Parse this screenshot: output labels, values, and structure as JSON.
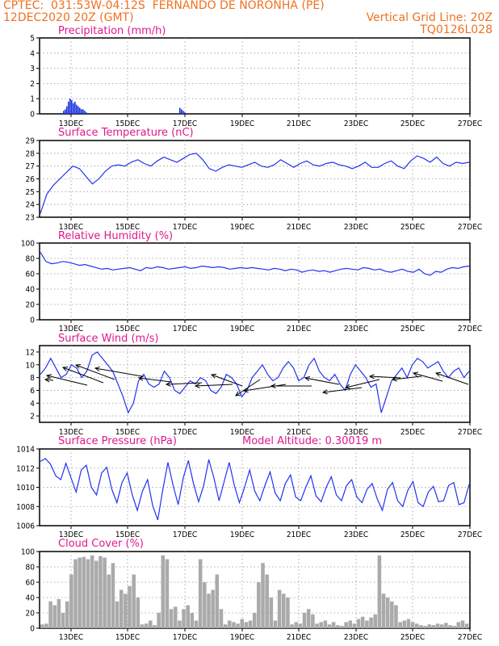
{
  "header": {
    "line1_left": "CPTEC:  031:53W-04:12S  FERNANDO DE NORONHA (PE)",
    "line2_left": "12DEC2020 20Z (GMT)",
    "line2_right": "Vertical Grid Line: 20Z",
    "line3_right": "TQ0126L028",
    "color": "#f07020"
  },
  "colors": {
    "line": "#2233ee",
    "bar_precip": "#1a2fe0",
    "cloud": "#aaaaaa",
    "title": "#e0188c",
    "grid": "#999999"
  },
  "chart_data": [
    {
      "type": "bar",
      "title": "Precipitation (mm/h)",
      "x_ticks": [
        "13DEC",
        "15DEC",
        "17DEC",
        "19DEC",
        "21DEC",
        "23DEC",
        "25DEC",
        "27DEC"
      ],
      "ylim": [
        0,
        5
      ],
      "y_ticks": [
        "0",
        "1",
        "2",
        "3",
        "4",
        "5"
      ],
      "series": [
        {
          "values": [
            0.2,
            0.3,
            0.5,
            0.8,
            1.0,
            0.9,
            0.7,
            0.8,
            0.6,
            0.5,
            0.4,
            0.3,
            0.3,
            0.2,
            0.1,
            0.0,
            0.0,
            0.0,
            0.4,
            0.3,
            0.2,
            0.1
          ]
        }
      ]
    },
    {
      "type": "line",
      "title": "Surface Temperature (nC)",
      "x_ticks": [
        "13DEC",
        "15DEC",
        "17DEC",
        "19DEC",
        "21DEC",
        "23DEC",
        "25DEC",
        "27DEC"
      ],
      "ylim": [
        23,
        29
      ],
      "y_ticks": [
        "23",
        "24",
        "25",
        "26",
        "27",
        "28",
        "29"
      ],
      "series": [
        {
          "values": [
            23.3,
            24.8,
            25.5,
            26.0,
            26.5,
            27.0,
            26.8,
            26.2,
            25.6,
            26.0,
            26.6,
            27.0,
            27.1,
            27.0,
            27.3,
            27.5,
            27.2,
            27.0,
            27.4,
            27.7,
            27.5,
            27.3,
            27.6,
            27.9,
            28.0,
            27.5,
            26.8,
            26.6,
            26.9,
            27.1,
            27.0,
            26.9,
            27.1,
            27.3,
            27.0,
            26.9,
            27.1,
            27.5,
            27.2,
            26.9,
            27.2,
            27.4,
            27.1,
            27.0,
            27.2,
            27.3,
            27.1,
            27.0,
            26.8,
            27.0,
            27.3,
            26.9,
            26.9,
            27.2,
            27.4,
            27.0,
            26.8,
            27.4,
            27.8,
            27.6,
            27.3,
            27.7,
            27.2,
            27.0,
            27.3,
            27.2,
            27.3
          ]
        }
      ]
    },
    {
      "type": "line",
      "title": "Relative Humidity (%)",
      "x_ticks": [
        "13DEC",
        "15DEC",
        "17DEC",
        "19DEC",
        "21DEC",
        "23DEC",
        "25DEC",
        "27DEC"
      ],
      "ylim": [
        0,
        100
      ],
      "y_ticks": [
        "0",
        "20",
        "40",
        "60",
        "80",
        "100"
      ],
      "series": [
        {
          "values": [
            88,
            76,
            73,
            74,
            76,
            75,
            73,
            71,
            72,
            70,
            68,
            66,
            67,
            65,
            66,
            67,
            68,
            66,
            64,
            68,
            67,
            69,
            68,
            66,
            67,
            68,
            69,
            67,
            68,
            70,
            69,
            68,
            69,
            68,
            66,
            67,
            68,
            67,
            68,
            67,
            66,
            65,
            67,
            66,
            64,
            66,
            65,
            62,
            64,
            65,
            63,
            64,
            62,
            64,
            66,
            67,
            66,
            65,
            68,
            67,
            65,
            66,
            63,
            62,
            64,
            66,
            63,
            62,
            66,
            60,
            58,
            63,
            62,
            66,
            68,
            67,
            69,
            70
          ]
        }
      ]
    },
    {
      "type": "line",
      "title": "Surface Wind (m/s)",
      "x_ticks": [
        "13DEC",
        "15DEC",
        "17DEC",
        "19DEC",
        "21DEC",
        "23DEC",
        "25DEC",
        "27DEC"
      ],
      "ylim": [
        1,
        13
      ],
      "y_ticks": [
        "2",
        "4",
        "6",
        "8",
        "10",
        "12"
      ],
      "series": [
        {
          "values": [
            8.5,
            9.5,
            11.0,
            9.5,
            8.0,
            8.5,
            10.0,
            9.5,
            8.0,
            9.0,
            11.5,
            12.0,
            11.0,
            10.0,
            9.0,
            7.0,
            5.0,
            2.5,
            4.0,
            7.5,
            8.5,
            7.0,
            6.5,
            7.0,
            9.0,
            8.0,
            6.0,
            5.5,
            6.5,
            7.5,
            7.0,
            8.0,
            7.5,
            6.0,
            5.5,
            6.5,
            8.5,
            8.0,
            7.0,
            5.0,
            6.0,
            8.0,
            9.0,
            10.0,
            8.5,
            7.5,
            8.0,
            9.5,
            10.5,
            9.5,
            7.5,
            8.0,
            10.0,
            11.0,
            9.0,
            8.0,
            7.5,
            8.5,
            7.0,
            6.0,
            8.5,
            10.0,
            9.0,
            8.0,
            6.5,
            7.0,
            2.5,
            5.0,
            7.5,
            8.5,
            9.5,
            8.0,
            10.0,
            11.0,
            10.5,
            9.5,
            10.0,
            10.5,
            9.0,
            8.0,
            9.0,
            9.5,
            8.0,
            9.0
          ]
        }
      ]
    },
    {
      "type": "line",
      "title": "Surface Pressure (hPa)",
      "annotation": "Model Altitude: 0.30019 m",
      "x_ticks": [
        "13DEC",
        "15DEC",
        "17DEC",
        "19DEC",
        "21DEC",
        "23DEC",
        "25DEC",
        "27DEC"
      ],
      "ylim": [
        1006,
        1014
      ],
      "y_ticks": [
        "1006",
        "1008",
        "1010",
        "1012",
        "1014"
      ],
      "series": [
        {
          "values": [
            1012.7,
            1013.0,
            1012.4,
            1011.2,
            1010.8,
            1012.5,
            1011.0,
            1009.5,
            1011.8,
            1012.3,
            1010.0,
            1009.2,
            1011.5,
            1012.1,
            1009.8,
            1008.4,
            1010.5,
            1011.5,
            1009.2,
            1007.6,
            1009.6,
            1010.8,
            1008.1,
            1006.6,
            1009.8,
            1012.6,
            1010.2,
            1008.2,
            1011.0,
            1012.8,
            1010.4,
            1008.5,
            1010.2,
            1012.9,
            1011.0,
            1008.6,
            1010.6,
            1012.6,
            1010.2,
            1008.4,
            1010.0,
            1011.8,
            1009.6,
            1008.6,
            1010.2,
            1011.6,
            1009.4,
            1008.6,
            1010.4,
            1011.3,
            1009.0,
            1008.6,
            1010.0,
            1011.2,
            1009.1,
            1008.5,
            1010.0,
            1011.1,
            1009.2,
            1008.6,
            1010.2,
            1010.8,
            1009.0,
            1008.4,
            1009.8,
            1010.4,
            1008.8,
            1007.6,
            1009.8,
            1010.5,
            1008.6,
            1008.0,
            1009.7,
            1010.6,
            1008.4,
            1008.0,
            1009.5,
            1010.1,
            1008.5,
            1008.6,
            1010.2,
            1010.5,
            1008.2,
            1008.4,
            1010.3
          ]
        }
      ]
    },
    {
      "type": "bar",
      "title": "Cloud Cover (%)",
      "x_ticks": [
        "13DEC",
        "15DEC",
        "17DEC",
        "19DEC",
        "21DEC",
        "23DEC",
        "25DEC",
        "27DEC"
      ],
      "ylim": [
        0,
        100
      ],
      "y_ticks": [
        "0",
        "20",
        "40",
        "60",
        "80",
        "100"
      ],
      "series": [
        {
          "values": [
            5,
            6,
            35,
            30,
            38,
            20,
            35,
            70,
            90,
            92,
            93,
            90,
            95,
            88,
            94,
            92,
            70,
            85,
            35,
            50,
            45,
            55,
            70,
            40,
            5,
            6,
            10,
            4,
            20,
            95,
            90,
            25,
            28,
            10,
            25,
            30,
            20,
            10,
            90,
            60,
            45,
            50,
            70,
            25,
            5,
            10,
            8,
            6,
            12,
            8,
            10,
            20,
            60,
            85,
            70,
            40,
            10,
            50,
            45,
            40,
            5,
            8,
            6,
            20,
            25,
            18,
            6,
            8,
            10,
            5,
            8,
            4,
            3,
            8,
            10,
            6,
            12,
            15,
            10,
            14,
            18,
            95,
            45,
            40,
            35,
            30,
            8,
            10,
            12,
            8,
            6,
            4,
            3,
            5,
            4,
            6,
            5,
            7,
            4,
            3,
            8,
            10,
            6
          ]
        }
      ]
    }
  ]
}
